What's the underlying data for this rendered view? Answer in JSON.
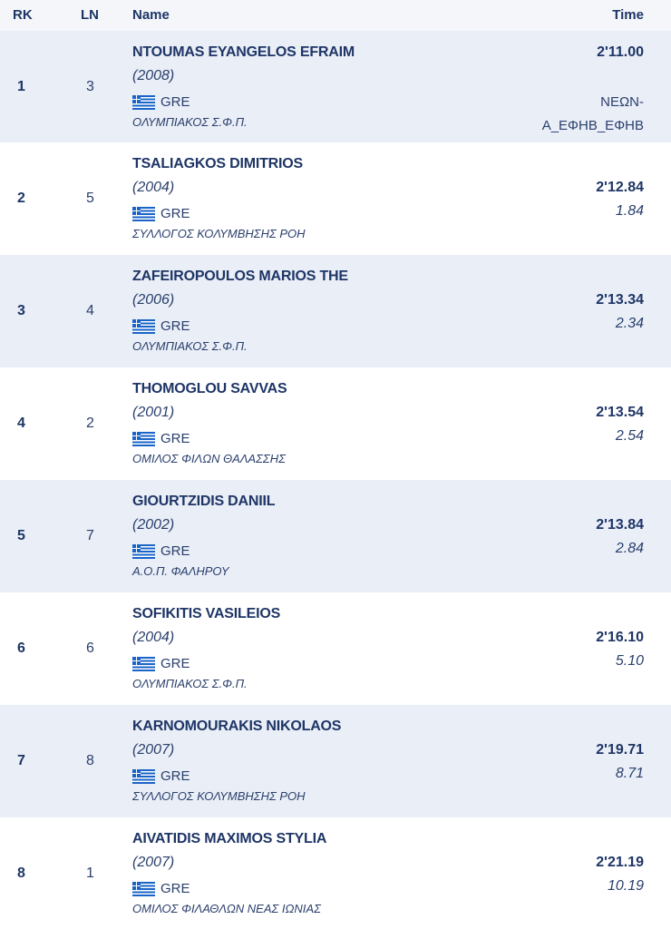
{
  "header": {
    "rk": "RK",
    "ln": "LN",
    "name": "Name",
    "time": "Time"
  },
  "rows": [
    {
      "rk": "1",
      "ln": "3",
      "name": "NTOUMAS EYANGELOS EFRAIM",
      "yob": "(2008)",
      "nation": "GRE",
      "club": "ΟΛΥΜΠΙΑΚΟΣ Σ.Φ.Π.",
      "time": "2'11.00",
      "diff": "",
      "record_line1": "ΝΕΩΝ-",
      "record_line2": "Α_ΕΦΗΒ_ΕΦΗΒ"
    },
    {
      "rk": "2",
      "ln": "5",
      "name": "TSALIAGKOS DIMITRIOS",
      "yob": "(2004)",
      "nation": "GRE",
      "club": "ΣΥΛΛΟΓΟΣ ΚΟΛΥΜΒΗΣΗΣ ΡΟΗ",
      "time": "2'12.84",
      "diff": "1.84"
    },
    {
      "rk": "3",
      "ln": "4",
      "name": "ZAFEIROPOULOS MARIOS THE",
      "yob": "(2006)",
      "nation": "GRE",
      "club": "ΟΛΥΜΠΙΑΚΟΣ Σ.Φ.Π.",
      "time": "2'13.34",
      "diff": "2.34"
    },
    {
      "rk": "4",
      "ln": "2",
      "name": "THOMOGLOU SAVVAS",
      "yob": "(2001)",
      "nation": "GRE",
      "club": "ΟΜΙΛΟΣ ΦΙΛΩΝ ΘΑΛΑΣΣΗΣ",
      "time": "2'13.54",
      "diff": "2.54"
    },
    {
      "rk": "5",
      "ln": "7",
      "name": "GIOURTZIDIS DANIIL",
      "yob": "(2002)",
      "nation": "GRE",
      "club": "Α.Ο.Π. ΦΑΛΗΡΟΥ",
      "time": "2'13.84",
      "diff": "2.84"
    },
    {
      "rk": "6",
      "ln": "6",
      "name": "SOFIKITIS VASILEIOS",
      "yob": "(2004)",
      "nation": "GRE",
      "club": "ΟΛΥΜΠΙΑΚΟΣ Σ.Φ.Π.",
      "time": "2'16.10",
      "diff": "5.10"
    },
    {
      "rk": "7",
      "ln": "8",
      "name": "KARNOMOURAKIS NIKOLAOS",
      "yob": "(2007)",
      "nation": "GRE",
      "club": "ΣΥΛΛΟΓΟΣ ΚΟΛΥΜΒΗΣΗΣ ΡΟΗ",
      "time": "2'19.71",
      "diff": "8.71"
    },
    {
      "rk": "8",
      "ln": "1",
      "name": "AIVATIDIS MAXIMOS STYLIA",
      "yob": "(2007)",
      "nation": "GRE",
      "club": "ΟΜΙΛΟΣ ΦΙΛΑΘΛΩΝ ΝΕΑΣ ΙΩΝΙΑΣ",
      "time": "2'21.19",
      "diff": "10.19"
    }
  ],
  "flag_icon": "greece-flag-icon",
  "colors": {
    "text": "#1e3566",
    "row_alt": "#e9eef7",
    "header_bg": "#f4f6fa",
    "flag_blue": "#1a64c8"
  }
}
